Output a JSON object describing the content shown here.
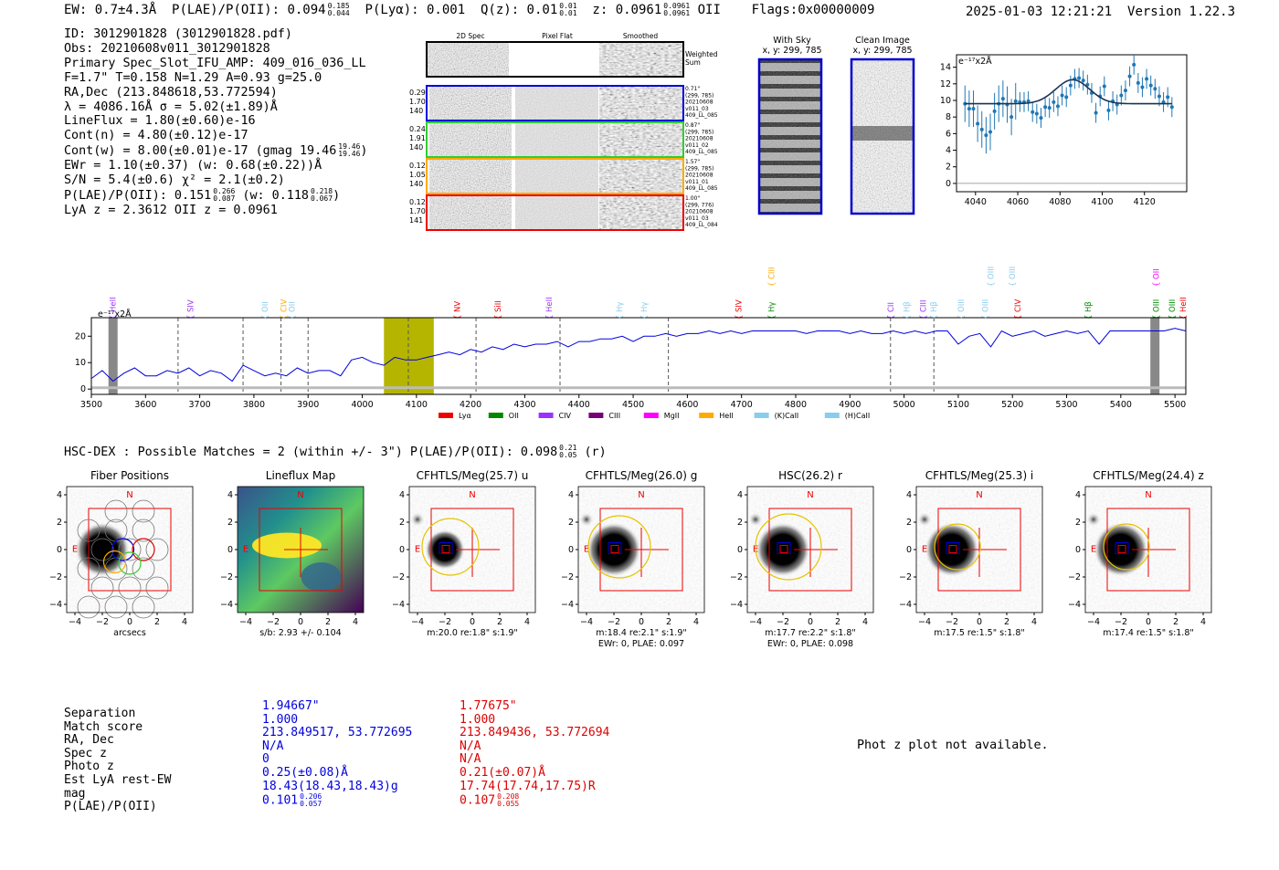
{
  "header": {
    "ew": "EW: 0.7±4.3Å",
    "plae_label": "P(LAE)/P(OII): 0.094",
    "plae_hi": "0.185",
    "plae_lo": "0.044",
    "plya": "P(Lyα): 0.001",
    "qz_label": "Q(z): 0.01",
    "qz_hi": "0.01",
    "qz_lo": "0.01",
    "z_label": "z: 0.0961",
    "z_hi": "0.0961",
    "z_lo": "0.0961",
    "z_line": "OII",
    "flags": "Flags:0x00000009",
    "datetime": "2025-01-03 12:21:21",
    "version": "Version 1.22.3"
  },
  "info": {
    "id": "ID: 3012901828 (3012901828.pdf)",
    "obs": "Obs: 20210608v011_3012901828",
    "spec_slot": "Primary Spec_Slot_IFU_AMP: 409_016_036_LL",
    "fit": "F=1.7\"  T=0.158  N=1.29  A=0.93  g=25.0",
    "radec": "RA,Dec (213.848618,53.772594)",
    "lambda": "λ = 4086.16Å  σ = 5.02(±1.89)Å",
    "lineflux": "LineFlux = 1.80(±0.60)e-16",
    "cont_n": "Cont(n) = 4.80(±0.12)e-17",
    "cont_w": "Cont(w) = 8.00(±0.01)e-17 (gmag 19.46",
    "cont_w_hi": "19.46",
    "cont_w_lo": "19.46",
    "ewr": "EWr = 1.10(±0.37) (w: 0.68(±0.22))Å",
    "sn": "S/N = 5.4(±0.6)  χ² = 2.1(±0.2)",
    "plae_a": "P(LAE)/P(OII): 0.151",
    "plae_a_hi": "0.266",
    "plae_a_lo": "0.087",
    "plae_b": "(w: 0.118",
    "plae_b_hi": "0.218",
    "plae_b_lo": "0.067",
    "lya_oii": "LyA z = 2.3612  OII z = 0.0961"
  },
  "cutouts": {
    "col_2d": "2D Spec",
    "col_flat": "Pixel Flat",
    "col_smooth": "Smoothed",
    "weighted_sum": "Weighted Sum",
    "rows": [
      {
        "color": "#0000dd",
        "n1": "0.29",
        "n2": "1.70",
        "n3": "140",
        "d1": "0.71\"",
        "d2": "(299, 785)",
        "d3": "20210608",
        "d4": "v011_03",
        "d5": "409_LL_085"
      },
      {
        "color": "#33cc33",
        "n1": "0.24",
        "n2": "1.91",
        "n3": "140",
        "d1": "0.87\"",
        "d2": "(299, 785)",
        "d3": "20210608",
        "d4": "v011_02",
        "d5": "409_LL_085"
      },
      {
        "color": "#ffaa00",
        "n1": "0.12",
        "n2": "1.05",
        "n3": "140",
        "d1": "1.57\"",
        "d2": "(299, 785)",
        "d3": "20210608",
        "d4": "v011_01",
        "d5": "409_LL_085"
      },
      {
        "color": "#ee0000",
        "n1": "0.12",
        "n2": "1.70",
        "n3": "141",
        "d1": "1.00\"",
        "d2": "(299, 776)",
        "d3": "20210608",
        "d4": "v011_03",
        "d5": "409_LL_084"
      }
    ],
    "with_sky": "With Sky",
    "with_sky_xy": "x, y: 299, 785",
    "clean": "Clean Image",
    "clean_xy": "x, y: 299, 785"
  },
  "zoom_chart": {
    "unit_label": "e⁻¹⁷x2Å",
    "x_ticks": [
      "4040",
      "4060",
      "4080",
      "4100",
      "4120"
    ],
    "y_ticks": [
      "0",
      "2",
      "4",
      "6",
      "8",
      "10",
      "12",
      "14"
    ],
    "xlim": [
      4031,
      4140
    ],
    "ylim": [
      -1,
      15.5
    ]
  },
  "chart_data": {
    "type": "line",
    "title": "",
    "ylabel": "e⁻¹⁷x2Å",
    "xlim": [
      3500,
      5520
    ],
    "ylim": [
      -2,
      27
    ],
    "x_ticks": [
      "3500",
      "3600",
      "3700",
      "3800",
      "3900",
      "4000",
      "4100",
      "4200",
      "4300",
      "4400",
      "4500",
      "4600",
      "4700",
      "4800",
      "4900",
      "5000",
      "5100",
      "5200",
      "5300",
      "5400",
      "5500"
    ],
    "y_ticks": [
      "0",
      "10",
      "20"
    ],
    "highlight_range": [
      4040,
      4132
    ],
    "legend": [
      {
        "label": "Lyα",
        "color": "#ee0000"
      },
      {
        "label": "OII",
        "color": "#008800"
      },
      {
        "label": "CIV",
        "color": "#9933ff"
      },
      {
        "label": "CIII",
        "color": "#770077"
      },
      {
        "label": "MgII",
        "color": "#ff00ff"
      },
      {
        "label": "HeII",
        "color": "#ffaa00"
      },
      {
        "label": "(K)CaII",
        "color": "#88ccee"
      },
      {
        "label": "(H)CaII",
        "color": "#88ccee"
      }
    ],
    "lines": [
      {
        "label": "HeII",
        "x": 3540,
        "color": "#9933ff",
        "row": 1
      },
      {
        "label": "SIV",
        "x": 3683,
        "color": "#9933ff",
        "row": 1
      },
      {
        "label": "OII",
        "x": 3820,
        "color": "#88ccee",
        "row": 1
      },
      {
        "label": "CIV",
        "x": 3855,
        "color": "#ffaa00",
        "row": 1
      },
      {
        "label": "OII",
        "x": 3870,
        "color": "#88ccee",
        "row": 1
      },
      {
        "label": "NV",
        "x": 4175,
        "color": "#ee0000",
        "row": 1
      },
      {
        "label": "SiII",
        "x": 4250,
        "color": "#ee0000",
        "row": 1
      },
      {
        "label": "HeII",
        "x": 4345,
        "color": "#9933ff",
        "row": 1
      },
      {
        "label": "Hγ",
        "x": 4475,
        "color": "#88ccee",
        "row": 1
      },
      {
        "label": "Hγ",
        "x": 4520,
        "color": "#88ccee",
        "row": 1
      },
      {
        "label": "SIV",
        "x": 4695,
        "color": "#ee0000",
        "row": 1
      },
      {
        "label": "Hγ",
        "x": 4755,
        "color": "#008800",
        "row": 1
      },
      {
        "label": "CIII",
        "x": 4755,
        "color": "#ffaa00",
        "row": 0
      },
      {
        "label": "CII",
        "x": 4975,
        "color": "#9933ff",
        "row": 1
      },
      {
        "label": "Hβ",
        "x": 5005,
        "color": "#88ccee",
        "row": 1
      },
      {
        "label": "CIII",
        "x": 5035,
        "color": "#9933ff",
        "row": 1
      },
      {
        "label": "Hβ",
        "x": 5055,
        "color": "#88ccee",
        "row": 1
      },
      {
        "label": "OIII",
        "x": 5105,
        "color": "#88ccee",
        "row": 1
      },
      {
        "label": "OIII",
        "x": 5150,
        "color": "#88ccee",
        "row": 1
      },
      {
        "label": "OIII",
        "x": 5160,
        "color": "#88ccee",
        "row": 0
      },
      {
        "label": "OIII",
        "x": 5200,
        "color": "#88ccee",
        "row": 0
      },
      {
        "label": "CIV",
        "x": 5210,
        "color": "#ee0000",
        "row": 1
      },
      {
        "label": "Hβ",
        "x": 5340,
        "color": "#008800",
        "row": 1
      },
      {
        "label": "OIII",
        "x": 5465,
        "color": "#008800",
        "row": 1
      },
      {
        "label": "OII",
        "x": 5465,
        "color": "#ff00ff",
        "row": 0
      },
      {
        "label": "OIII",
        "x": 5495,
        "color": "#008800",
        "row": 1
      },
      {
        "label": "HeII",
        "x": 5515,
        "color": "#ee0000",
        "row": 1
      }
    ],
    "dashed_x": [
      3660,
      3780,
      3850,
      3900,
      4085,
      4210,
      4365,
      4565,
      4975,
      5055
    ],
    "gray_bars": [
      3540,
      5463
    ],
    "series": [
      {
        "name": "spectrum",
        "color": "#0000dd",
        "x": [
          3500,
          3520,
          3540,
          3560,
          3580,
          3600,
          3620,
          3640,
          3660,
          3680,
          3700,
          3720,
          3740,
          3760,
          3780,
          3800,
          3820,
          3840,
          3860,
          3880,
          3900,
          3920,
          3940,
          3960,
          3980,
          4000,
          4020,
          4040,
          4060,
          4080,
          4100,
          4120,
          4140,
          4160,
          4180,
          4200,
          4220,
          4240,
          4260,
          4280,
          4300,
          4320,
          4340,
          4360,
          4380,
          4400,
          4420,
          4440,
          4460,
          4480,
          4500,
          4520,
          4540,
          4560,
          4580,
          4600,
          4620,
          4640,
          4660,
          4680,
          4700,
          4720,
          4740,
          4760,
          4780,
          4800,
          4820,
          4840,
          4860,
          4880,
          4900,
          4920,
          4940,
          4960,
          4980,
          5000,
          5020,
          5040,
          5060,
          5080,
          5100,
          5120,
          5140,
          5160,
          5180,
          5200,
          5220,
          5240,
          5260,
          5280,
          5300,
          5320,
          5340,
          5360,
          5380,
          5400,
          5420,
          5440,
          5460,
          5480,
          5500,
          5520
        ],
        "values": [
          4,
          7,
          3,
          6,
          8,
          5,
          5,
          7,
          6,
          8,
          5,
          7,
          6,
          3,
          9,
          7,
          5,
          6,
          5,
          8,
          6,
          7,
          7,
          5,
          11,
          12,
          10,
          9,
          12,
          11,
          11,
          12,
          13,
          14,
          13,
          15,
          14,
          16,
          15,
          17,
          16,
          17,
          17,
          18,
          16,
          18,
          18,
          19,
          19,
          20,
          18,
          20,
          20,
          21,
          20,
          21,
          21,
          22,
          21,
          22,
          21,
          22,
          22,
          22,
          22,
          22,
          21,
          22,
          22,
          22,
          21,
          22,
          21,
          21,
          22,
          21,
          22,
          21,
          22,
          22,
          17,
          20,
          21,
          16,
          22,
          20,
          21,
          22,
          20,
          21,
          22,
          21,
          22,
          17,
          22,
          22,
          22,
          22,
          22,
          22,
          23,
          22
        ]
      },
      {
        "name": "noise",
        "color": "#bbbbbb",
        "x": [
          3500,
          3600,
          3700,
          3800,
          3900,
          4000,
          4100,
          4200,
          4300,
          4400,
          4500,
          4600,
          4700,
          4800,
          4900,
          5000,
          5100,
          5200,
          5300,
          5400,
          5520
        ],
        "values": [
          0.5,
          0.5,
          0.5,
          0.5,
          0.5,
          0.5,
          0.5,
          0.5,
          0.5,
          0.5,
          0.5,
          0.5,
          0.5,
          0.5,
          0.5,
          0.5,
          0.5,
          0.5,
          0.5,
          0.5,
          0.5
        ]
      }
    ],
    "zoom_series": {
      "x": [
        4035,
        4037,
        4039,
        4041,
        4043,
        4045,
        4047,
        4049,
        4051,
        4053,
        4055,
        4057,
        4059,
        4061,
        4063,
        4065,
        4067,
        4069,
        4071,
        4073,
        4075,
        4077,
        4079,
        4081,
        4083,
        4085,
        4087,
        4089,
        4091,
        4093,
        4095,
        4097,
        4099,
        4101,
        4103,
        4105,
        4107,
        4109,
        4111,
        4113,
        4115,
        4117,
        4119,
        4121,
        4123,
        4125,
        4127,
        4129,
        4131,
        4133
      ],
      "values": [
        9.6,
        9.0,
        9.0,
        7.2,
        6.5,
        5.8,
        6.2,
        8.7,
        9.6,
        10.2,
        9.5,
        8.0,
        9.9,
        9.8,
        9.8,
        9.9,
        8.6,
        8.4,
        7.9,
        9.2,
        9.1,
        9.8,
        9.3,
        10.6,
        10.4,
        11.8,
        12.6,
        12.7,
        12.4,
        11.9,
        10.9,
        8.5,
        10.5,
        11.7,
        8.8,
        9.9,
        9.5,
        10.6,
        11.2,
        12.9,
        14.3,
        12.1,
        11.6,
        12.6,
        11.8,
        11.4,
        10.5,
        9.8,
        10.4,
        9.2
      ],
      "fit_baseline": 9.6,
      "fit_peak": 12.5,
      "fit_center": 4086,
      "fit_sigma": 5
    }
  },
  "hsc": {
    "text": "HSC-DEX : Possible Matches = 2 (within +/- 3\")  P(LAE)/P(OII): 0.098",
    "hi": "0.21",
    "lo": "0.05",
    "band": "(r)"
  },
  "thumbs": [
    {
      "title": "Fiber Positions",
      "cap1": "arcsecs",
      "cap2": "",
      "kind": "fiber"
    },
    {
      "title": "Lineflux Map",
      "cap1": "s/b: 2.93 +/- 0.104",
      "cap2": "",
      "kind": "flux"
    },
    {
      "title": "CFHTLS/Meg(25.7) u",
      "cap1": "m:20.0  re:1.8\"  s:1.9\"",
      "cap2": "",
      "kind": "img",
      "r": 62,
      "core": 22
    },
    {
      "title": "CFHTLS/Meg(26.0) g",
      "cap1": "m:18.4  re:2.1\"  s:1.9\"",
      "cap2": "EWr: 0, PLAE: 0.097",
      "kind": "img",
      "r": 68,
      "core": 30
    },
    {
      "title": "HSC(26.2) r",
      "cap1": "m:17.7  re:2.2\"  s:1.8\"",
      "cap2": "EWr: 0, PLAE: 0.098",
      "kind": "img",
      "r": 72,
      "core": 30
    },
    {
      "title": "CFHTLS/Meg(25.3) i",
      "cap1": "m:17.5  re:1.5\"  s:1.8\"",
      "cap2": "",
      "kind": "img",
      "r": 50,
      "core": 30
    },
    {
      "title": "CFHTLS/Meg(24.4) z",
      "cap1": "m:17.4  re:1.5\"  s:1.8\"",
      "cap2": "",
      "kind": "img",
      "r": 50,
      "core": 30
    }
  ],
  "thumb_axis": {
    "ticks": [
      "−4",
      "−2",
      "0",
      "2",
      "4"
    ],
    "north": "N",
    "east": "E"
  },
  "matches": {
    "labels": [
      "Separation",
      "Match score",
      "RA, Dec",
      "Spec z",
      "Photo z",
      "Est LyA rest-EW",
      "mag",
      "P(LAE)/P(OII)"
    ],
    "blue": [
      "1.94667\"",
      "1.000",
      "213.849517, 53.772695",
      "N/A",
      "0",
      "0.25(±0.08)Å",
      "18.43(18.43,18.43)g",
      "0.101"
    ],
    "blue_hi": "0.206",
    "blue_lo": "0.057",
    "red": [
      "1.77675\"",
      "1.000",
      "213.849436, 53.772694",
      "N/A",
      "N/A",
      "0.21(±0.07)Å",
      "17.74(17.74,17.75)R",
      "0.107"
    ],
    "red_hi": "0.208",
    "red_lo": "0.055"
  },
  "photz": "Phot z plot not available."
}
